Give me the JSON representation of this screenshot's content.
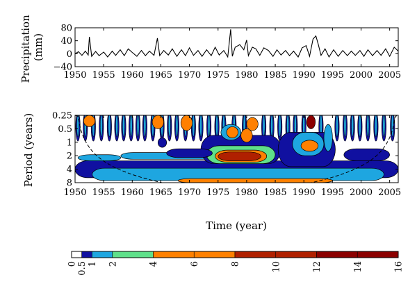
{
  "chart_data": [
    {
      "type": "line",
      "ylabel": "Precipitation (mm)",
      "ylabel_lines": [
        "Precipitation",
        "(mm)"
      ],
      "xlim": [
        1950,
        2006.5
      ],
      "ylim": [
        -40,
        80
      ],
      "x_ticks": [
        1950,
        1955,
        1960,
        1965,
        1970,
        1975,
        1980,
        1985,
        1990,
        1995,
        2000,
        2005
      ],
      "x_tick_labels": [
        "1950",
        "1955",
        "1960",
        "1965",
        "1970",
        "1975",
        "1980",
        "1985",
        "1990",
        "1995",
        "2000",
        "2005"
      ],
      "y_ticks": [
        -40,
        0,
        40,
        80
      ],
      "y_tick_labels": [
        "−40",
        "0",
        "40",
        "80"
      ],
      "series": [
        {
          "color": "#000000",
          "x": [
            1950.0,
            1950.6,
            1951.2,
            1951.8,
            1952.3,
            1952.5,
            1952.9,
            1953.6,
            1954.2,
            1955.0,
            1955.7,
            1956.5,
            1957.1,
            1957.9,
            1958.6,
            1959.3,
            1960.0,
            1960.8,
            1961.6,
            1962.3,
            1963.0,
            1963.8,
            1964.4,
            1964.8,
            1965.5,
            1966.3,
            1967.0,
            1967.8,
            1968.6,
            1969.3,
            1970.0,
            1970.7,
            1971.5,
            1972.2,
            1973.0,
            1973.8,
            1974.5,
            1975.2,
            1976.0,
            1976.7,
            1977.2,
            1977.5,
            1978.0,
            1978.8,
            1979.5,
            1980.0,
            1980.3,
            1981.0,
            1981.6,
            1982.3,
            1983.0,
            1983.8,
            1984.6,
            1985.3,
            1986.0,
            1986.8,
            1987.5,
            1988.2,
            1989.0,
            1989.7,
            1990.4,
            1991.0,
            1991.6,
            1992.1,
            1992.5,
            1993.0,
            1993.7,
            1994.4,
            1995.2,
            1996.0,
            1996.8,
            1997.6,
            1998.3,
            1999.0,
            1999.8,
            2000.5,
            2001.2,
            2002.0,
            2002.8,
            2003.5,
            2004.3,
            2005.0,
            2005.8,
            2006.5
          ],
          "y": [
            0,
            6,
            -5,
            8,
            -4,
            52,
            -8,
            7,
            -6,
            5,
            -10,
            8,
            -5,
            12,
            -6,
            15,
            4,
            -8,
            10,
            -6,
            8,
            -5,
            48,
            -6,
            10,
            -4,
            15,
            -8,
            12,
            -6,
            18,
            -5,
            10,
            -8,
            12,
            -6,
            20,
            -4,
            10,
            -10,
            75,
            -8,
            20,
            28,
            12,
            42,
            -6,
            20,
            15,
            -5,
            18,
            10,
            -8,
            12,
            -4,
            10,
            -6,
            8,
            -10,
            18,
            25,
            -8,
            45,
            55,
            30,
            -5,
            15,
            -10,
            12,
            -8,
            10,
            -6,
            8,
            -5,
            10,
            -8,
            12,
            -6,
            10,
            -5,
            15,
            -8,
            20,
            8
          ]
        }
      ]
    },
    {
      "type": "heatmap",
      "title": "",
      "xlabel": "Time (year)",
      "ylabel": "Period (years)",
      "xlim": [
        1950,
        2006.5
      ],
      "y_scale": "log2",
      "ylim": [
        0.25,
        8
      ],
      "x_ticks": [
        1950,
        1955,
        1960,
        1965,
        1970,
        1975,
        1980,
        1985,
        1990,
        1995,
        2000,
        2005
      ],
      "x_tick_labels": [
        "1950",
        "1955",
        "1960",
        "1965",
        "1970",
        "1975",
        "1980",
        "1985",
        "1990",
        "1995",
        "2000",
        "2005"
      ],
      "y_ticks": [
        0.25,
        0.5,
        1,
        2,
        4,
        8
      ],
      "y_tick_labels": [
        "0.25",
        "0.5",
        "1",
        "2",
        "4",
        "8"
      ],
      "colorbar": {
        "levels": [
          0,
          0.5,
          1,
          2,
          4,
          6,
          8,
          10,
          12,
          14,
          16
        ],
        "tick_labels": [
          "0",
          "0.5",
          "1",
          "2",
          "4",
          "6",
          "8",
          "10",
          "12",
          "14",
          "16"
        ],
        "colors": [
          "#ffffff",
          "#1010a0",
          "#1ea6e0",
          "#5fe08a",
          "#ff8000",
          "#ff8000",
          "#b02000",
          "#b02000",
          "#8b0000",
          "#8b0000"
        ]
      },
      "regions": [
        {
          "t0": 1950.0,
          "t1": 2006.5,
          "p0": 2.6,
          "p1": 6.2,
          "level": 1
        },
        {
          "t0": 1953.0,
          "t1": 2004.0,
          "p0": 3.8,
          "p1": 7.2,
          "level": 2
        },
        {
          "t0": 1958.0,
          "t1": 1978.0,
          "p0": 1.7,
          "p1": 2.4,
          "level": 2
        },
        {
          "t0": 1950.5,
          "t1": 1958.0,
          "p0": 1.9,
          "p1": 2.6,
          "level": 2
        },
        {
          "t0": 1968.0,
          "t1": 1995.0,
          "p0": 6.5,
          "p1": 8.0,
          "level": 4
        },
        {
          "t0": 1972.0,
          "t1": 1986.0,
          "p0": 0.7,
          "p1": 3.0,
          "level": 1
        },
        {
          "t0": 1973.0,
          "t1": 1985.0,
          "p0": 1.2,
          "p1": 3.0,
          "level": 3
        },
        {
          "t0": 1974.5,
          "t1": 1983.5,
          "p0": 1.5,
          "p1": 2.8,
          "level": 5
        },
        {
          "t0": 1975.0,
          "t1": 1982.5,
          "p0": 1.65,
          "p1": 2.6,
          "level": 7
        },
        {
          "t0": 1975.5,
          "t1": 1979.0,
          "p0": 0.4,
          "p1": 0.9,
          "level": 2
        },
        {
          "t0": 1976.5,
          "t1": 1978.5,
          "p0": 0.45,
          "p1": 0.8,
          "level": 5
        },
        {
          "t0": 1979.0,
          "t1": 1981.0,
          "p0": 0.5,
          "p1": 1.0,
          "level": 4
        },
        {
          "t0": 1985.5,
          "t1": 1995.5,
          "p0": 0.6,
          "p1": 3.5,
          "level": 1
        },
        {
          "t0": 1988.0,
          "t1": 1993.5,
          "p0": 0.6,
          "p1": 2.0,
          "level": 2
        },
        {
          "t0": 1989.5,
          "t1": 1992.5,
          "p0": 0.9,
          "p1": 1.6,
          "level": 4
        },
        {
          "t0": 1990.5,
          "t1": 1992.0,
          "p0": 0.25,
          "p1": 0.5,
          "level": 8
        },
        {
          "t0": 1993.5,
          "t1": 1995.0,
          "p0": 0.4,
          "p1": 1.6,
          "level": 2
        },
        {
          "t0": 1951.5,
          "t1": 1953.5,
          "p0": 0.25,
          "p1": 0.45,
          "level": 4
        },
        {
          "t0": 1963.5,
          "t1": 1965.5,
          "p0": 0.25,
          "p1": 0.5,
          "level": 4
        },
        {
          "t0": 1968.5,
          "t1": 1970.5,
          "p0": 0.25,
          "p1": 0.55,
          "level": 4
        },
        {
          "t0": 1980.0,
          "t1": 1982.0,
          "p0": 0.28,
          "p1": 0.55,
          "level": 4
        },
        {
          "t0": 1964.5,
          "t1": 1966.0,
          "p0": 0.8,
          "p1": 1.3,
          "level": 1
        },
        {
          "t0": 1997.0,
          "t1": 2005.0,
          "p0": 1.4,
          "p1": 2.6,
          "level": 1
        },
        {
          "t0": 1966.0,
          "t1": 1974.0,
          "p0": 1.4,
          "p1": 2.2,
          "level": 1
        }
      ],
      "streaks": [
        1950.5,
        1951.8,
        1953.2,
        1954.6,
        1956.0,
        1957.3,
        1958.5,
        1959.8,
        1961.0,
        1962.2,
        1963.6,
        1965.2,
        1966.5,
        1967.8,
        1969.3,
        1970.7,
        1972.0,
        1973.4,
        1974.8,
        1976.0,
        1977.8,
        1979.6,
        1983.0,
        1984.4,
        1985.8,
        1987.2,
        1988.5,
        1990.0,
        1993.0,
        1995.8,
        1997.2,
        1998.5,
        1999.8,
        2001.2,
        2002.6,
        2004.0,
        2005.5
      ]
    }
  ]
}
